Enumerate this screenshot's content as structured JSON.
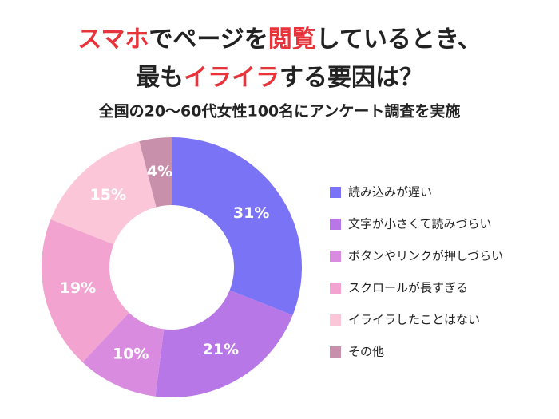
{
  "chart_data": {
    "type": "donut",
    "title_lines": [
      [
        {
          "text": "スマホ",
          "color": "#e8333a"
        },
        {
          "text": "でページを",
          "color": "#222222"
        },
        {
          "text": "閲覧",
          "color": "#e8333a"
        },
        {
          "text": "しているとき、",
          "color": "#222222"
        }
      ],
      [
        {
          "text": "最も",
          "color": "#222222"
        },
        {
          "text": "イライラ",
          "color": "#e8333a"
        },
        {
          "text": "する要因は？",
          "color": "#222222"
        }
      ]
    ],
    "subtitle": "全国の20〜60代女性100名にアンケート調査を実施",
    "categories": [
      "読み込みが遅い",
      "文字が小さくて読みづらい",
      "ボタンやリンクが押しづらい",
      "スクロールが長すぎる",
      "イライラしたことはない",
      "その他"
    ],
    "values": [
      31,
      21,
      10,
      19,
      15,
      4
    ],
    "value_labels": [
      "31%",
      "21%",
      "10%",
      "19%",
      "15%",
      "4%"
    ],
    "colors": [
      "#7b73f5",
      "#b877e6",
      "#d98be0",
      "#f2a3cf",
      "#fbc6d8",
      "#c990ab"
    ]
  }
}
